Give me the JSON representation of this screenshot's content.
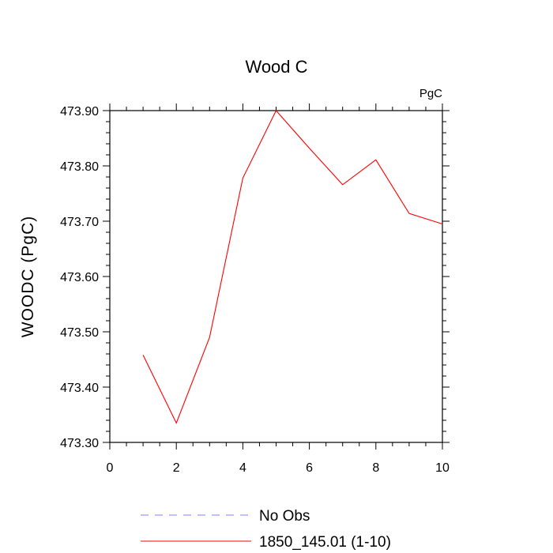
{
  "chart_data": {
    "type": "line",
    "title": "Wood C",
    "units_label": "PgC",
    "ylabel": "WOODC  (PgC)",
    "xlabel": "",
    "xlim": [
      0,
      10
    ],
    "ylim": [
      473.3,
      473.9
    ],
    "x_ticks": [
      0,
      2,
      4,
      6,
      8,
      10
    ],
    "x_tick_labels": [
      "0",
      "2",
      "4",
      "6",
      "8",
      "10"
    ],
    "y_ticks": [
      473.3,
      473.4,
      473.5,
      473.6,
      473.7,
      473.8,
      473.9
    ],
    "y_tick_labels": [
      "473.30",
      "473.40",
      "473.50",
      "473.60",
      "473.70",
      "473.80",
      "473.90"
    ],
    "grid": false,
    "legend_position": "bottom",
    "series": [
      {
        "name": "1850_145.01 (1-10)",
        "color": "#ff0000",
        "style": "solid",
        "x": [
          1,
          2,
          3,
          4,
          5,
          6,
          7,
          8,
          9,
          10
        ],
        "y": [
          473.458,
          473.335,
          473.49,
          473.778,
          473.9,
          473.832,
          473.766,
          473.811,
          473.714,
          473.695
        ]
      }
    ],
    "legend": [
      {
        "label": "No Obs",
        "color": "#8080ff",
        "style": "dashed"
      },
      {
        "label": "1850_145.01 (1-10)",
        "color": "#ff0000",
        "style": "solid"
      }
    ]
  }
}
